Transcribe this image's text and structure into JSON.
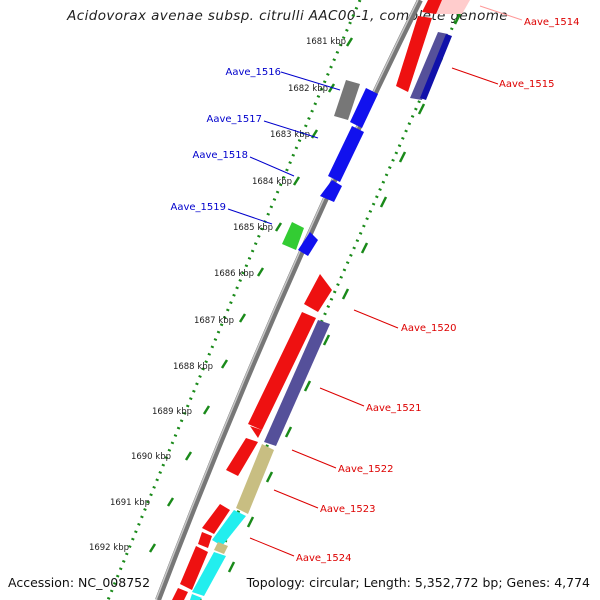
{
  "title": "Acidovorax avenae subsp. citrulli AAC00-1, complete genome",
  "accession_text": "Accession: NC_008752",
  "summary_text": "Topology: circular; Length: 5,352,772 bp; Genes: 4,774",
  "ticks": [
    "1681 kbp",
    "1682 kbp",
    "1683 kbp",
    "1684 kbp",
    "1685 kbp",
    "1686 kbp",
    "1687 kbp",
    "1688 kbp",
    "1689 kbp",
    "1690 kbp",
    "1691 kbp",
    "1692 kbp"
  ],
  "gene_labels": {
    "left": [
      "Aave_1516",
      "Aave_1517",
      "Aave_1518",
      "Aave_1519"
    ],
    "right": [
      "Aave_1514",
      "Aave_1515",
      "Aave_1520",
      "Aave_1521",
      "Aave_1522",
      "Aave_1523",
      "Aave_1524"
    ]
  },
  "colors": {
    "label_left": "#0000cc",
    "label_right": "#dd0000",
    "backbone": "#888888",
    "dotted_ring": "#1a8a1a",
    "gene_red": "#ee1111",
    "gene_blue": "#1111ee",
    "gene_purple": "#55509a",
    "gene_gray": "#777777",
    "gene_green": "#33cc33",
    "gene_khaki": "#c8be82",
    "gene_cyan": "#22eeee"
  }
}
